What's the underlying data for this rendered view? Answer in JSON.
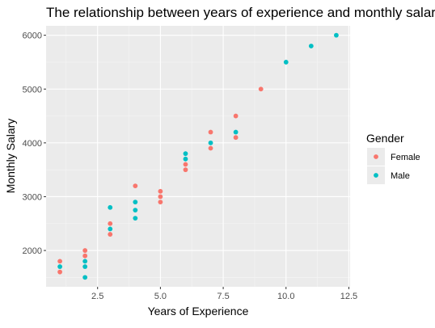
{
  "chart_data": {
    "type": "scatter",
    "title": "The relationship between years of experience and monthly salary",
    "xlabel": "Years of Experience",
    "ylabel": "Monthly Salary",
    "xlim": [
      0.45,
      12.55
    ],
    "ylim": [
      1325,
      6175
    ],
    "x_ticks": [
      2.5,
      5.0,
      7.5,
      10.0,
      12.5
    ],
    "x_tick_labels": [
      "2.5",
      "5.0",
      "7.5",
      "10.0",
      "12.5"
    ],
    "y_ticks": [
      2000,
      3000,
      4000,
      5000,
      6000
    ],
    "y_tick_labels": [
      "2000",
      "3000",
      "4000",
      "5000",
      "6000"
    ],
    "grid": true,
    "legend_placement": "right",
    "legend_title": "Gender",
    "series": [
      {
        "name": "Female",
        "color": "#F8766D",
        "points": [
          [
            1,
            1800
          ],
          [
            1,
            1600
          ],
          [
            2,
            2000
          ],
          [
            2,
            1900
          ],
          [
            3,
            2500
          ],
          [
            3,
            2300
          ],
          [
            4,
            3200
          ],
          [
            5,
            3100
          ],
          [
            5,
            3000
          ],
          [
            5,
            2900
          ],
          [
            6,
            3600
          ],
          [
            6,
            3500
          ],
          [
            7,
            4200
          ],
          [
            7,
            3900
          ],
          [
            8,
            4500
          ],
          [
            8,
            4100
          ],
          [
            9,
            5000
          ]
        ]
      },
      {
        "name": "Male",
        "color": "#00BFC4",
        "points": [
          [
            1,
            1700
          ],
          [
            2,
            1800
          ],
          [
            2,
            1700
          ],
          [
            2,
            1500
          ],
          [
            3,
            2800
          ],
          [
            3,
            2400
          ],
          [
            4,
            2900
          ],
          [
            4,
            2750
          ],
          [
            4,
            2600
          ],
          [
            6,
            3800
          ],
          [
            6,
            3700
          ],
          [
            7,
            4000
          ],
          [
            8,
            4200
          ],
          [
            10,
            5500
          ],
          [
            11,
            5800
          ],
          [
            12,
            6000
          ]
        ]
      }
    ]
  }
}
